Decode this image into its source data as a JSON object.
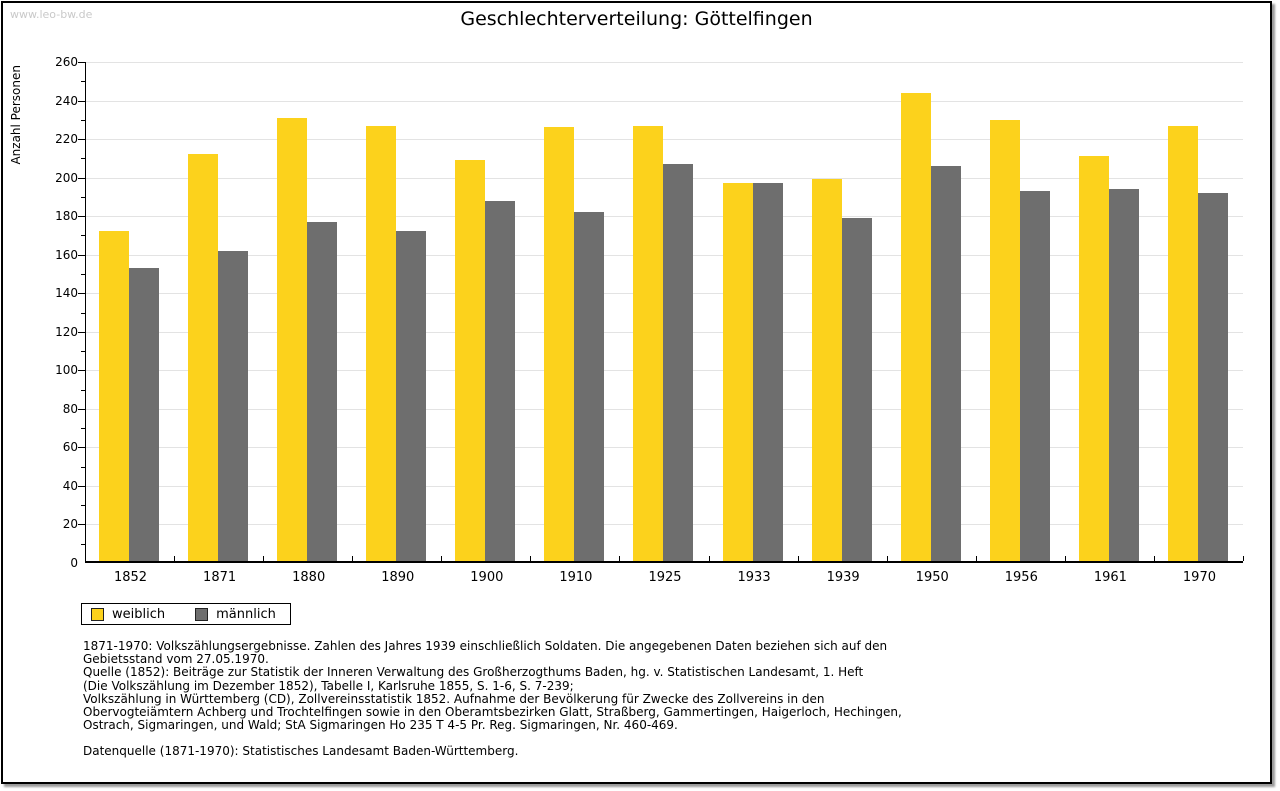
{
  "watermark": "www.leo-bw.de",
  "title": "Geschlechterverteilung: Göttelfingen",
  "chart_data": {
    "type": "bar",
    "title": "Geschlechterverteilung: Göttelfingen",
    "ylabel": "Anzahl Personen",
    "xlabel": "",
    "ylim": [
      0,
      260
    ],
    "ytick_step": 20,
    "minor_tick_step": 10,
    "grid": true,
    "legend_position": "bottom-left",
    "categories": [
      "1852",
      "1871",
      "1880",
      "1890",
      "1900",
      "1910",
      "1925",
      "1933",
      "1939",
      "1950",
      "1956",
      "1961",
      "1970"
    ],
    "series": [
      {
        "key": "weiblich",
        "name": "weiblich",
        "color": "#fcd21c",
        "values": [
          171,
          211,
          230,
          226,
          208,
          225,
          226,
          196,
          198,
          243,
          229,
          210,
          226
        ]
      },
      {
        "key": "maennlich",
        "name": "männlich",
        "color": "#6e6e6e",
        "values": [
          152,
          161,
          176,
          171,
          187,
          181,
          206,
          196,
          178,
          205,
          192,
          193,
          191
        ]
      }
    ]
  },
  "footer": {
    "lines": [
      "1871-1970: Volkszählungsergebnisse. Zahlen des Jahres 1939 einschließlich Soldaten. Die angegebenen Daten beziehen sich auf den",
      "Gebietsstand vom 27.05.1970.",
      "Quelle (1852): Beiträge zur Statistik der Inneren Verwaltung des Großherzogthums Baden, hg. v. Statistischen Landesamt, 1. Heft",
      "(Die Volkszählung im Dezember 1852), Tabelle I, Karlsruhe 1855, S. 1-6, S. 7-239;",
      "Volkszählung in Württemberg (CD), Zollvereinsstatistik 1852. Aufnahme der Bevölkerung für Zwecke des Zollvereins in den",
      "Obervogteiämtern Achberg und Trochtelfingen sowie in den Oberamtsbezirken Glatt, Straßberg, Gammertingen, Haigerloch, Hechingen,",
      "Ostrach, Sigmaringen, und Wald; StA Sigmaringen Ho 235 T 4-5 Pr. Reg. Sigmaringen, Nr. 460-469."
    ],
    "datasource": "Datenquelle (1871-1970): Statistisches Landesamt Baden-Württemberg."
  }
}
